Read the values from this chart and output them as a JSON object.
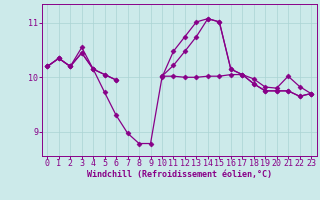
{
  "background_color": "#cceaea",
  "line_color": "#880088",
  "marker": "D",
  "marker_size": 2.5,
  "line_width": 0.9,
  "xlabel": "Windchill (Refroidissement éolien,°C)",
  "xlabel_color": "#880088",
  "xlabel_fontsize": 6.0,
  "tick_color": "#880088",
  "tick_fontsize": 6.0,
  "ylim": [
    8.55,
    11.35
  ],
  "xlim": [
    -0.5,
    23.5
  ],
  "yticks": [
    9,
    10,
    11
  ],
  "xticks": [
    0,
    1,
    2,
    3,
    4,
    5,
    6,
    7,
    8,
    9,
    10,
    11,
    12,
    13,
    14,
    15,
    16,
    17,
    18,
    19,
    20,
    21,
    22,
    23
  ],
  "grid_color": "#aad4d4",
  "series": [
    [
      10.2,
      10.35,
      10.2,
      10.45,
      10.15,
      10.05,
      9.95,
      null,
      null,
      null,
      10.02,
      10.02,
      10.0,
      10.0,
      10.02,
      10.02,
      10.05,
      10.05,
      9.97,
      9.82,
      9.8,
      10.02,
      9.83,
      9.7
    ],
    [
      10.2,
      10.35,
      10.2,
      10.55,
      10.15,
      9.72,
      9.3,
      8.97,
      8.78,
      8.78,
      10.0,
      10.48,
      10.75,
      11.02,
      11.08,
      11.02,
      10.15,
      10.05,
      9.88,
      9.75,
      9.75,
      9.75,
      9.65,
      9.7
    ],
    [
      10.2,
      10.35,
      10.2,
      10.45,
      10.15,
      10.05,
      9.95,
      null,
      null,
      null,
      10.02,
      10.22,
      10.48,
      10.75,
      11.08,
      11.02,
      10.15,
      10.05,
      9.88,
      9.75,
      9.75,
      9.75,
      9.65,
      9.7
    ]
  ]
}
